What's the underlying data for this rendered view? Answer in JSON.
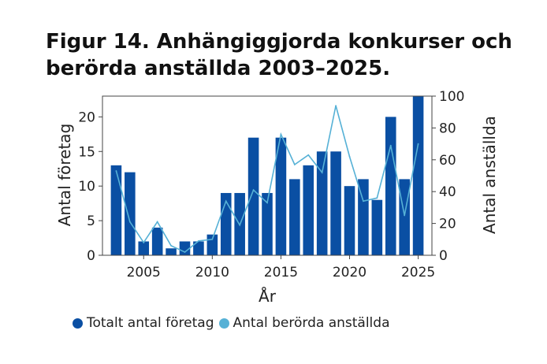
{
  "chart_data": {
    "type": "bar",
    "title_line1": "Figur 14. Anhängiggjorda konkurser och",
    "title_line2": "berörda anställda 2003–2025.",
    "xlabel": "År",
    "ylabel_left": "Antal företag",
    "ylabel_right": "Antal anställda",
    "xlim": [
      2002,
      2026
    ],
    "ylim_left": [
      0,
      23
    ],
    "ylim_right": [
      0,
      100
    ],
    "x_ticks": [
      "2005",
      "2010",
      "2015",
      "2020",
      "2025"
    ],
    "y_ticks_left": [
      "0",
      "5",
      "10",
      "15",
      "20"
    ],
    "y_ticks_right": [
      "0",
      "20",
      "40",
      "60",
      "80",
      "100"
    ],
    "x": [
      2003,
      2004,
      2005,
      2006,
      2007,
      2008,
      2009,
      2010,
      2011,
      2012,
      2013,
      2014,
      2015,
      2016,
      2017,
      2018,
      2019,
      2020,
      2021,
      2022,
      2023,
      2024,
      2025
    ],
    "series": [
      {
        "name": "Totalt antal företag",
        "type": "bar",
        "axis": "left",
        "color": "#0a4fa3",
        "values": [
          13,
          12,
          2,
          4,
          1,
          2,
          2,
          3,
          9,
          9,
          17,
          9,
          17,
          11,
          13,
          15,
          15,
          10,
          11,
          8,
          20,
          11,
          23
        ]
      },
      {
        "name": "Antal berörda anställda",
        "type": "line",
        "axis": "right",
        "color": "#56b1d6",
        "values": [
          53,
          21,
          8,
          21,
          6,
          2,
          9,
          10,
          34,
          19,
          41,
          33,
          76,
          57,
          63,
          52,
          94,
          62,
          34,
          36,
          69,
          25,
          70
        ]
      }
    ],
    "grid": false,
    "legend_position": "bottom"
  }
}
